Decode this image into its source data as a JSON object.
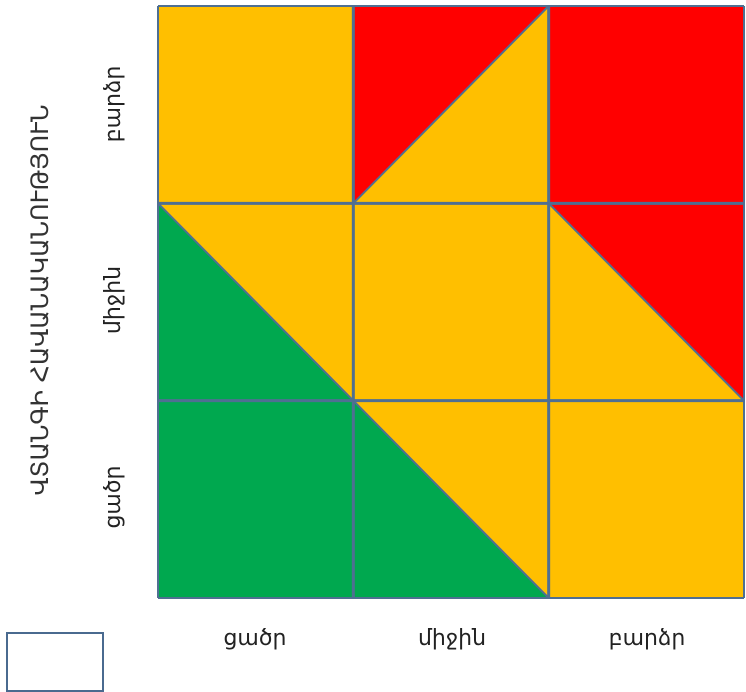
{
  "y_axis": {
    "title": "ՎՏԱՆԳԻ ՀԱՎԱՆԱԿԱՆՈՒԹՅՈՒՆ",
    "labels": [
      "բարձր",
      "միջին",
      "ցածր"
    ]
  },
  "x_axis": {
    "labels": [
      "ցածր",
      "միջին",
      "բարձր"
    ]
  },
  "colors": {
    "green": "#00a84f",
    "yellow": "#ffbf00",
    "red": "#ff0000",
    "grid": "#4f6f92"
  },
  "cells": [
    {
      "row": 0,
      "col": 0,
      "fill": "yellow"
    },
    {
      "row": 0,
      "col": 1,
      "split": "tr-bl",
      "upper": "red",
      "lower": "yellow"
    },
    {
      "row": 0,
      "col": 2,
      "fill": "red"
    },
    {
      "row": 1,
      "col": 0,
      "split": "tl-br",
      "upper": "yellow",
      "lower": "green"
    },
    {
      "row": 1,
      "col": 1,
      "fill": "yellow"
    },
    {
      "row": 1,
      "col": 2,
      "split": "tl-br",
      "upper": "red",
      "lower": "yellow"
    },
    {
      "row": 2,
      "col": 0,
      "fill": "green"
    },
    {
      "row": 2,
      "col": 1,
      "split": "tl-br",
      "upper": "yellow",
      "lower": "green"
    },
    {
      "row": 2,
      "col": 2,
      "fill": "yellow"
    }
  ]
}
